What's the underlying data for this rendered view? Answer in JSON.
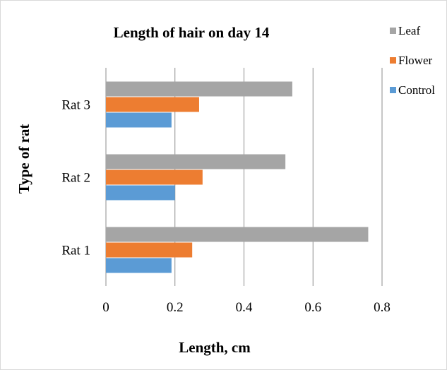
{
  "chart_data": {
    "type": "bar",
    "orientation": "horizontal",
    "title": "Length of hair on day 14",
    "xlabel": "Length, cm",
    "ylabel": "Type of rat",
    "categories": [
      "Rat 1",
      "Rat 2",
      "Rat 3"
    ],
    "series": [
      {
        "name": "Control",
        "values": [
          0.19,
          0.2,
          0.19
        ],
        "color": "#5b9bd5"
      },
      {
        "name": "Flower",
        "values": [
          0.25,
          0.28,
          0.27
        ],
        "color": "#ed7d31"
      },
      {
        "name": "Leaf",
        "values": [
          0.76,
          0.52,
          0.54
        ],
        "color": "#a5a5a5"
      }
    ],
    "xlim": [
      0,
      0.8
    ],
    "xticks": [
      "0",
      "0.2",
      "0.4",
      "0.6",
      "0.8"
    ],
    "grid": true,
    "legend_position": "top-right",
    "legend_order": [
      "Leaf",
      "Flower",
      "Control"
    ]
  }
}
